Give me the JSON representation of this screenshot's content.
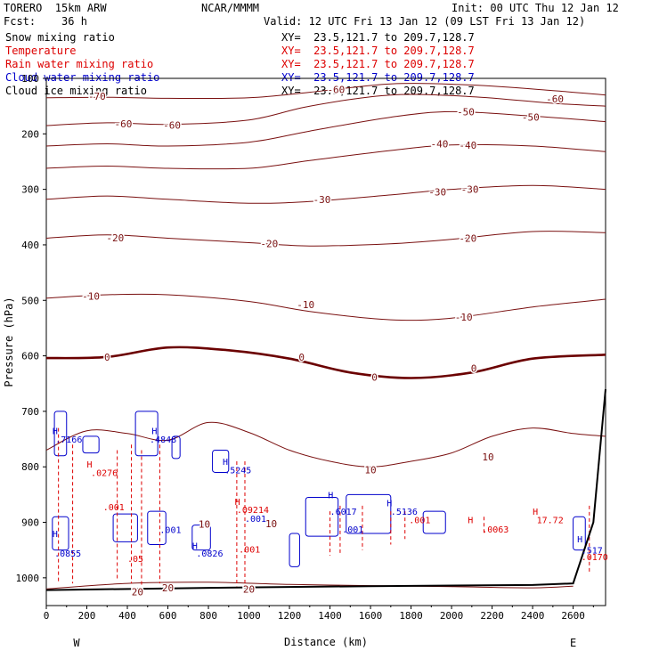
{
  "header": {
    "model": "TORERO  15km ARW",
    "org": "NCAR/MMMM",
    "init": "Init: 00 UTC Thu 12 Jan 12",
    "fcst": "Fcst:    36 h",
    "valid": "Valid: 12 UTC Fri 13 Jan 12 (09 LST Fri 13 Jan 12)"
  },
  "legend": [
    {
      "name": "Snow mixing ratio",
      "xy": "XY=  23.5,121.7 to 209.7,128.7",
      "color": "#000000"
    },
    {
      "name": "Temperature",
      "xy": "XY=  23.5,121.7 to 209.7,128.7",
      "color": "#dd0000"
    },
    {
      "name": "Rain water mixing ratio",
      "xy": "XY=  23.5,121.7 to 209.7,128.7",
      "color": "#dd0000"
    },
    {
      "name": "Cloud water mixing ratio",
      "xy": "XY=  23.5,121.7 to 209.7,128.7",
      "color": "#0000cc"
    },
    {
      "name": "Cloud ice mixing ratio",
      "xy": "XY=  23.5,121.7 to 209.7,128.7",
      "color": "#000000"
    }
  ],
  "chart_data": {
    "type": "line",
    "xlabel": "Distance (km)",
    "ylabel": "Pressure (hPa)",
    "xlim": [
      0,
      2760
    ],
    "ylim": [
      100,
      1050
    ],
    "xticks": [
      "0",
      "200",
      "400",
      "600",
      "800",
      "1000",
      "1200",
      "1400",
      "1600",
      "1800",
      "2000",
      "2200",
      "2400",
      "2600"
    ],
    "yticks": [
      "100",
      "200",
      "300",
      "400",
      "500",
      "600",
      "700",
      "800",
      "900",
      "1000"
    ],
    "west_label": "W",
    "east_label": "E",
    "colors": {
      "temperature": "#7a1010",
      "freezing": "#6b0000",
      "rain": "#dd0000",
      "cloud": "#0000cc",
      "ground": "#000000"
    },
    "temperature_contours": [
      {
        "value": -70,
        "points": [
          [
            0,
            135
          ],
          [
            300,
            134
          ],
          [
            600,
            136
          ],
          [
            1000,
            135
          ],
          [
            1300,
            125
          ],
          [
            1700,
            110
          ],
          [
            2100,
            112
          ],
          [
            2500,
            122
          ],
          [
            2760,
            130
          ]
        ]
      },
      {
        "value": -60,
        "points": [
          [
            0,
            185
          ],
          [
            300,
            180
          ],
          [
            600,
            183
          ],
          [
            1000,
            175
          ],
          [
            1300,
            150
          ],
          [
            1700,
            130
          ],
          [
            2100,
            133
          ],
          [
            2500,
            145
          ],
          [
            2760,
            150
          ]
        ]
      },
      {
        "value": -50,
        "points": [
          [
            0,
            222
          ],
          [
            300,
            218
          ],
          [
            600,
            222
          ],
          [
            1000,
            215
          ],
          [
            1300,
            195
          ],
          [
            1700,
            170
          ],
          [
            2000,
            160
          ],
          [
            2400,
            168
          ],
          [
            2760,
            178
          ]
        ]
      },
      {
        "value": -40,
        "points": [
          [
            0,
            262
          ],
          [
            300,
            258
          ],
          [
            600,
            262
          ],
          [
            1000,
            262
          ],
          [
            1300,
            248
          ],
          [
            1700,
            230
          ],
          [
            2000,
            220
          ],
          [
            2400,
            222
          ],
          [
            2760,
            232
          ]
        ]
      },
      {
        "value": -30,
        "points": [
          [
            0,
            318
          ],
          [
            300,
            312
          ],
          [
            600,
            318
          ],
          [
            1000,
            325
          ],
          [
            1300,
            322
          ],
          [
            1700,
            310
          ],
          [
            2000,
            300
          ],
          [
            2400,
            293
          ],
          [
            2760,
            300
          ]
        ]
      },
      {
        "value": -20,
        "points": [
          [
            0,
            388
          ],
          [
            300,
            382
          ],
          [
            600,
            388
          ],
          [
            1000,
            396
          ],
          [
            1300,
            402
          ],
          [
            1700,
            398
          ],
          [
            2000,
            390
          ],
          [
            2400,
            376
          ],
          [
            2760,
            378
          ]
        ]
      },
      {
        "value": -10,
        "points": [
          [
            0,
            496
          ],
          [
            300,
            490
          ],
          [
            600,
            490
          ],
          [
            1000,
            502
          ],
          [
            1300,
            520
          ],
          [
            1700,
            535
          ],
          [
            2000,
            532
          ],
          [
            2400,
            512
          ],
          [
            2760,
            498
          ]
        ]
      },
      {
        "value": 0,
        "points": [
          [
            0,
            604
          ],
          [
            300,
            602
          ],
          [
            600,
            585
          ],
          [
            900,
            590
          ],
          [
            1200,
            605
          ],
          [
            1500,
            630
          ],
          [
            1800,
            640
          ],
          [
            2100,
            630
          ],
          [
            2400,
            605
          ],
          [
            2760,
            598
          ]
        ]
      },
      {
        "value": 10,
        "points": [
          [
            0,
            770
          ],
          [
            200,
            735
          ],
          [
            400,
            740
          ],
          [
            600,
            752
          ],
          [
            800,
            720
          ],
          [
            1000,
            738
          ],
          [
            1200,
            770
          ],
          [
            1400,
            790
          ],
          [
            1600,
            800
          ],
          [
            1800,
            790
          ],
          [
            2000,
            775
          ],
          [
            2200,
            745
          ],
          [
            2400,
            730
          ],
          [
            2600,
            740
          ],
          [
            2760,
            745
          ]
        ]
      },
      {
        "value": 20,
        "points": [
          [
            0,
            1020
          ],
          [
            400,
            1010
          ],
          [
            800,
            1008
          ],
          [
            1200,
            1012
          ],
          [
            1600,
            1014
          ],
          [
            2000,
            1016
          ],
          [
            2400,
            1018
          ],
          [
            2600,
            1015
          ]
        ]
      }
    ],
    "ground": [
      [
        0,
        1022
      ],
      [
        800,
        1018
      ],
      [
        1600,
        1015
      ],
      [
        2400,
        1013
      ],
      [
        2600,
        1010
      ],
      [
        2700,
        900
      ],
      [
        2760,
        660
      ]
    ],
    "contour_labels": [
      {
        "text": "-70",
        "x": 250,
        "y": 132
      },
      {
        "text": "-60",
        "x": 1430,
        "y": 120
      },
      {
        "text": "-60",
        "x": 2510,
        "y": 137
      },
      {
        "text": "-60",
        "x": 380,
        "y": 182
      },
      {
        "text": "-60",
        "x": 620,
        "y": 184
      },
      {
        "text": "-50",
        "x": 2070,
        "y": 160
      },
      {
        "text": "-50",
        "x": 2390,
        "y": 170
      },
      {
        "text": "-40",
        "x": 1940,
        "y": 218
      },
      {
        "text": "-40",
        "x": 2080,
        "y": 220
      },
      {
        "text": "-30",
        "x": 1360,
        "y": 318
      },
      {
        "text": "-30",
        "x": 1930,
        "y": 305
      },
      {
        "text": "-30",
        "x": 2090,
        "y": 300
      },
      {
        "text": "-20",
        "x": 340,
        "y": 387
      },
      {
        "text": "-20",
        "x": 1100,
        "y": 398
      },
      {
        "text": "-20",
        "x": 2080,
        "y": 388
      },
      {
        "text": "-10",
        "x": 220,
        "y": 492
      },
      {
        "text": "-10",
        "x": 1280,
        "y": 508
      },
      {
        "text": "-10",
        "x": 2060,
        "y": 530
      },
      {
        "text": "0",
        "x": 300,
        "y": 602
      },
      {
        "text": "0",
        "x": 1260,
        "y": 602
      },
      {
        "text": "0",
        "x": 1620,
        "y": 638
      },
      {
        "text": "0",
        "x": 2110,
        "y": 622
      },
      {
        "text": "10",
        "x": 1600,
        "y": 805
      },
      {
        "text": "10",
        "x": 2180,
        "y": 782
      },
      {
        "text": "10",
        "x": 780,
        "y": 903
      },
      {
        "text": "10",
        "x": 1110,
        "y": 902
      },
      {
        "text": "20",
        "x": 450,
        "y": 1025
      },
      {
        "text": "20",
        "x": 600,
        "y": 1018
      },
      {
        "text": "20",
        "x": 1000,
        "y": 1020
      }
    ],
    "point_labels": [
      {
        "text": "H",
        "x": 30,
        "y": 735,
        "color": "#0000cc"
      },
      {
        "text": ".7166",
        "x": 45,
        "y": 750,
        "color": "#0000cc"
      },
      {
        "text": "H",
        "x": 520,
        "y": 735,
        "color": "#0000cc"
      },
      {
        "text": ".4848",
        "x": 510,
        "y": 750,
        "color": "#0000cc"
      },
      {
        "text": "H",
        "x": 200,
        "y": 795,
        "color": "#dd0000"
      },
      {
        "text": ".0276",
        "x": 220,
        "y": 810,
        "color": "#dd0000"
      },
      {
        "text": "H",
        "x": 870,
        "y": 790,
        "color": "#0000cc"
      },
      {
        "text": ".5245",
        "x": 880,
        "y": 805,
        "color": "#0000cc"
      },
      {
        "text": "H",
        "x": 930,
        "y": 862,
        "color": "#dd0000"
      },
      {
        "text": ".09214",
        "x": 940,
        "y": 877,
        "color": "#dd0000"
      },
      {
        "text": ".001",
        "x": 280,
        "y": 872,
        "color": "#dd0000"
      },
      {
        "text": ".001",
        "x": 560,
        "y": 913,
        "color": "#0000cc"
      },
      {
        "text": ".001",
        "x": 980,
        "y": 893,
        "color": "#0000cc"
      },
      {
        "text": "H",
        "x": 1390,
        "y": 850,
        "color": "#0000cc"
      },
      {
        "text": ".6017",
        "x": 1400,
        "y": 880,
        "color": "#0000cc"
      },
      {
        "text": ".5136",
        "x": 1700,
        "y": 880,
        "color": "#0000cc"
      },
      {
        "text": "H",
        "x": 1680,
        "y": 865,
        "color": "#0000cc"
      },
      {
        "text": ".001",
        "x": 1460,
        "y": 912,
        "color": "#0000cc"
      },
      {
        "text": ".001",
        "x": 1790,
        "y": 895,
        "color": "#dd0000"
      },
      {
        "text": "H",
        "x": 2080,
        "y": 895,
        "color": "#dd0000"
      },
      {
        "text": ".0063",
        "x": 2150,
        "y": 912,
        "color": "#dd0000"
      },
      {
        "text": "H",
        "x": 2400,
        "y": 880,
        "color": "#dd0000"
      },
      {
        "text": "17.72",
        "x": 2420,
        "y": 895,
        "color": "#dd0000"
      },
      {
        "text": "H",
        "x": 30,
        "y": 920,
        "color": "#0000cc"
      },
      {
        "text": ".0855",
        "x": 40,
        "y": 955,
        "color": "#0000cc"
      },
      {
        "text": "H",
        "x": 720,
        "y": 942,
        "color": "#0000cc"
      },
      {
        "text": ".0826",
        "x": 740,
        "y": 955,
        "color": "#0000cc"
      },
      {
        "text": ".001",
        "x": 950,
        "y": 948,
        "color": "#dd0000"
      },
      {
        "text": ".05",
        "x": 400,
        "y": 965,
        "color": "#dd0000"
      },
      {
        "text": "H",
        "x": 2620,
        "y": 930,
        "color": "#0000cc"
      },
      {
        "text": ".517",
        "x": 2640,
        "y": 950,
        "color": "#0000cc"
      },
      {
        "text": ".0170",
        "x": 2640,
        "y": 962,
        "color": "#dd0000"
      }
    ],
    "cloud_contours": [
      {
        "x": 40,
        "y": 700,
        "w": 60,
        "h": 80
      },
      {
        "x": 440,
        "y": 700,
        "w": 110,
        "h": 80
      },
      {
        "x": 180,
        "y": 745,
        "w": 80,
        "h": 30
      },
      {
        "x": 620,
        "y": 745,
        "w": 40,
        "h": 40
      },
      {
        "x": 820,
        "y": 770,
        "w": 80,
        "h": 40
      },
      {
        "x": 1280,
        "y": 855,
        "w": 160,
        "h": 70
      },
      {
        "x": 1480,
        "y": 850,
        "w": 220,
        "h": 70
      },
      {
        "x": 1860,
        "y": 880,
        "w": 110,
        "h": 40
      },
      {
        "x": 1200,
        "y": 920,
        "w": 50,
        "h": 60
      },
      {
        "x": 330,
        "y": 885,
        "w": 120,
        "h": 50
      },
      {
        "x": 500,
        "y": 880,
        "w": 90,
        "h": 60
      },
      {
        "x": 720,
        "y": 905,
        "w": 90,
        "h": 45
      },
      {
        "x": 30,
        "y": 890,
        "w": 80,
        "h": 60
      },
      {
        "x": 2600,
        "y": 890,
        "w": 60,
        "h": 60
      }
    ],
    "rain_lines": [
      {
        "x": 60,
        "y0": 730,
        "y1": 1010
      },
      {
        "x": 130,
        "y0": 760,
        "y1": 1010
      },
      {
        "x": 350,
        "y0": 770,
        "y1": 1005
      },
      {
        "x": 420,
        "y0": 760,
        "y1": 1010
      },
      {
        "x": 470,
        "y0": 770,
        "y1": 1015
      },
      {
        "x": 560,
        "y0": 760,
        "y1": 1010
      },
      {
        "x": 940,
        "y0": 790,
        "y1": 1015
      },
      {
        "x": 980,
        "y0": 790,
        "y1": 1015
      },
      {
        "x": 1400,
        "y0": 880,
        "y1": 960
      },
      {
        "x": 1450,
        "y0": 870,
        "y1": 960
      },
      {
        "x": 1560,
        "y0": 870,
        "y1": 950
      },
      {
        "x": 1700,
        "y0": 880,
        "y1": 940
      },
      {
        "x": 1770,
        "y0": 880,
        "y1": 930
      },
      {
        "x": 2160,
        "y0": 890,
        "y1": 920
      },
      {
        "x": 2680,
        "y0": 870,
        "y1": 990
      }
    ]
  }
}
